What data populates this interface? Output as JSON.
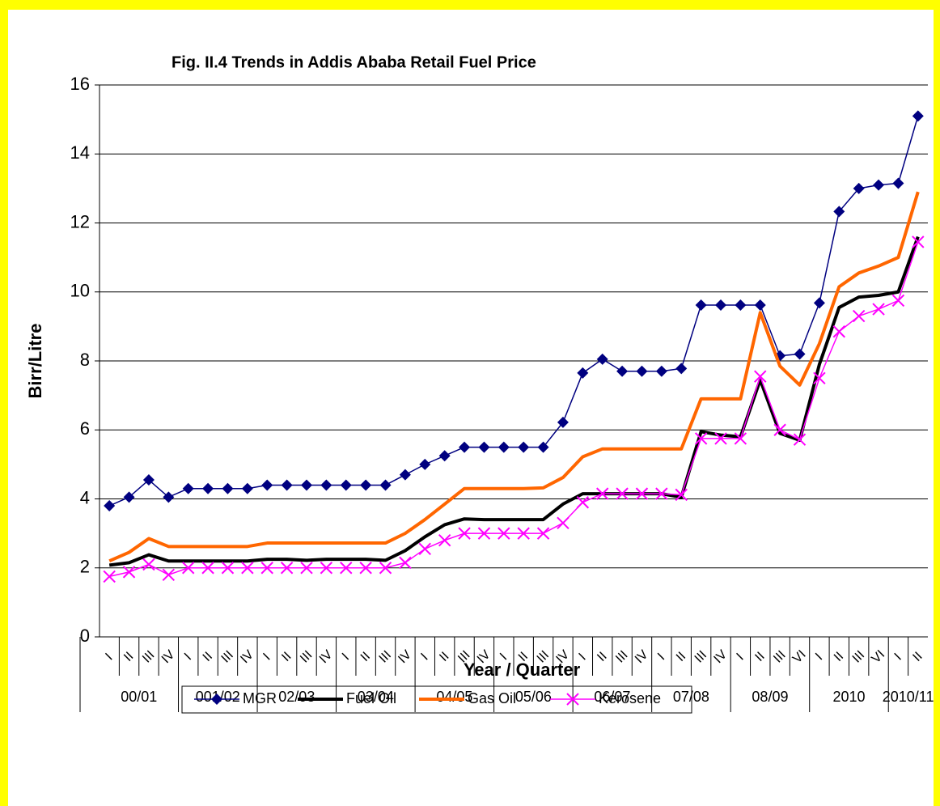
{
  "chart_data": {
    "type": "line",
    "title": "Fig. II.4 Trends in Addis Ababa Retail Fuel Price",
    "y_label": "Birr/Litre",
    "x_label": "Year / Quarter",
    "category_groups": [
      {
        "name": "00/01",
        "categories": [
          "I",
          "II",
          "III",
          "IV"
        ]
      },
      {
        "name": "001/02",
        "categories": [
          "I",
          "II",
          "III",
          "IV"
        ]
      },
      {
        "name": "02/03",
        "categories": [
          "I",
          "II",
          "III",
          "IV"
        ]
      },
      {
        "name": "03/04",
        "categories": [
          "I",
          "II",
          "III",
          "IV"
        ]
      },
      {
        "name": "04/05",
        "categories": [
          "I",
          "II",
          "III",
          "IV"
        ]
      },
      {
        "name": "05/06",
        "categories": [
          "I",
          "II",
          "III",
          "IV"
        ]
      },
      {
        "name": "06/07",
        "categories": [
          "I",
          "II",
          "III",
          "IV"
        ]
      },
      {
        "name": "07/08",
        "categories": [
          "I",
          "II",
          "III",
          "IV"
        ]
      },
      {
        "name": "08/09",
        "categories": [
          "I",
          "II",
          "III",
          "VI"
        ]
      },
      {
        "name": "2010",
        "categories": [
          "I",
          "II",
          "III",
          "VI"
        ]
      },
      {
        "name": "2010/11",
        "categories": [
          "I",
          "II"
        ]
      }
    ],
    "series": [
      {
        "name": "MGR",
        "color": "#000080",
        "marker": "diamond",
        "values": [
          3.8,
          4.05,
          4.55,
          4.05,
          4.3,
          4.3,
          4.3,
          4.3,
          4.4,
          4.4,
          4.4,
          4.4,
          4.4,
          4.4,
          4.4,
          4.7,
          5.0,
          5.25,
          5.5,
          5.5,
          5.5,
          5.5,
          5.5,
          6.22,
          7.65,
          8.05,
          7.7,
          7.7,
          7.7,
          7.78,
          9.62,
          9.62,
          9.62,
          9.62,
          8.15,
          8.2,
          9.68,
          12.33,
          13.0,
          13.1,
          13.15,
          15.1
        ]
      },
      {
        "name": "Fuel Oil",
        "color": "#000000",
        "values": [
          2.08,
          2.15,
          2.38,
          2.2,
          2.2,
          2.2,
          2.2,
          2.2,
          2.25,
          2.25,
          2.22,
          2.25,
          2.25,
          2.25,
          2.22,
          2.5,
          2.9,
          3.25,
          3.42,
          3.4,
          3.4,
          3.4,
          3.4,
          3.85,
          4.15,
          4.15,
          4.15,
          4.15,
          4.15,
          4.05,
          5.95,
          5.85,
          5.8,
          7.45,
          5.9,
          5.7,
          7.9,
          9.55,
          9.85,
          9.9,
          10.0,
          11.6
        ]
      },
      {
        "name": "Gas Oil",
        "color": "#ff6600",
        "values": [
          2.2,
          2.45,
          2.85,
          2.62,
          2.62,
          2.62,
          2.62,
          2.62,
          2.72,
          2.72,
          2.72,
          2.72,
          2.72,
          2.72,
          2.72,
          3.0,
          3.4,
          3.85,
          4.3,
          4.3,
          4.3,
          4.3,
          4.32,
          4.62,
          5.22,
          5.45,
          5.45,
          5.45,
          5.45,
          5.45,
          6.9,
          6.9,
          6.9,
          9.4,
          7.85,
          7.3,
          8.5,
          10.15,
          10.55,
          10.75,
          11.0,
          12.9
        ]
      },
      {
        "name": "Kerosene",
        "color": "#ff00ff",
        "marker": "x",
        "values": [
          1.75,
          1.88,
          2.1,
          1.8,
          2.0,
          2.0,
          2.0,
          2.0,
          2.0,
          2.0,
          2.0,
          2.0,
          2.0,
          2.0,
          2.0,
          2.15,
          2.55,
          2.8,
          3.0,
          3.0,
          3.0,
          3.0,
          3.0,
          3.3,
          3.9,
          4.15,
          4.15,
          4.15,
          4.15,
          4.12,
          5.75,
          5.75,
          5.75,
          7.55,
          6.0,
          5.72,
          7.5,
          8.85,
          9.3,
          9.5,
          9.75,
          11.45
        ]
      }
    ],
    "ylim": [
      0,
      16
    ],
    "yticks": [
      0,
      2,
      4,
      6,
      8,
      10,
      12,
      14,
      16
    ],
    "grid": true,
    "legend": "bottom"
  }
}
